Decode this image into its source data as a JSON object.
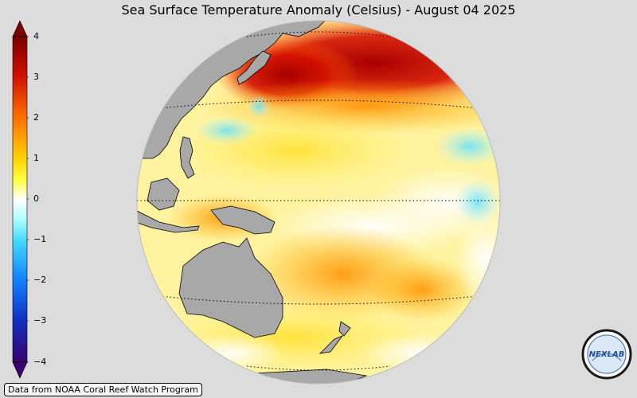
{
  "title": "Sea Surface Temperature Anomaly (Celsius) - August 04 2025",
  "colorbar": {
    "ticks": [
      "4",
      "3",
      "2",
      "1",
      "0",
      "−1",
      "−2",
      "−3",
      "−4"
    ],
    "min": -4,
    "max": 4,
    "colors": [
      "#3a0070",
      "#1040d0",
      "#40c0ff",
      "#ffffff",
      "#ffff30",
      "#ff9a00",
      "#d01000",
      "#7a0000"
    ]
  },
  "credit": "Data from NOAA Coral Reef Watch Program",
  "logo": {
    "text": "NEXLAB"
  },
  "map": {
    "projection": "orthographic",
    "ocean_anomaly_colors": {
      "strong_warm": "#b40000",
      "warm": "#ff9a00",
      "mild_warm": "#ffe440",
      "neutral": "#ffffff",
      "cool": "#80e8ff"
    },
    "land_color": "#a8a8a8",
    "landmasses": [
      "Asia",
      "Indonesia",
      "Australia",
      "New Zealand",
      "Papua New Guinea"
    ]
  }
}
